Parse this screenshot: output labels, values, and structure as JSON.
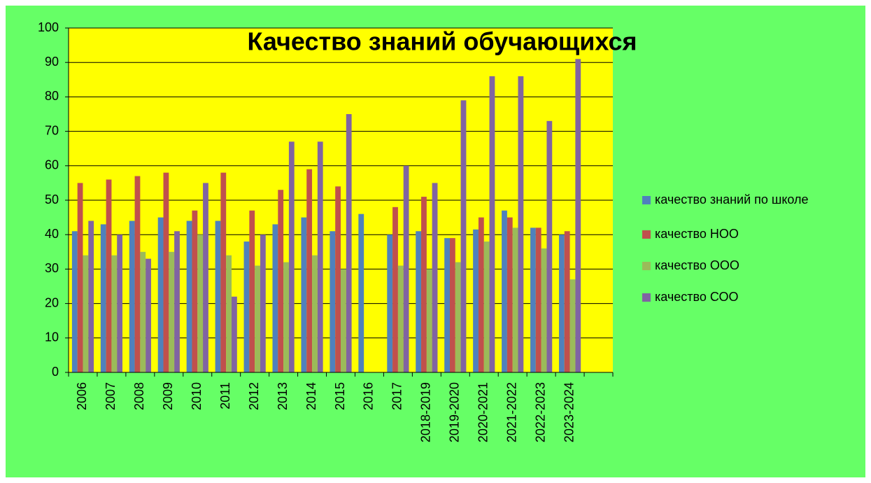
{
  "chart_data": {
    "type": "bar",
    "title": "Качество знаний обучающихся",
    "categories": [
      "2006",
      "2007",
      "2008",
      "2009",
      "2010",
      "2011",
      "2012",
      "2013",
      "2014",
      "2015",
      "2016",
      "2017",
      "2018-2019",
      "2019-2020",
      "2020-2021",
      "2021-2022",
      "2022-2023",
      "2023-2024",
      null
    ],
    "series": [
      {
        "name": "качество знаний  по школе",
        "color": "#4f81bd",
        "values": [
          41,
          43,
          44,
          45,
          44,
          44,
          38,
          43,
          45,
          41,
          46,
          40,
          41,
          39,
          41.5,
          47,
          42,
          40,
          null
        ]
      },
      {
        "name": "качество НОО",
        "color": "#c0504d",
        "values": [
          55,
          56,
          57,
          58,
          47,
          58,
          47,
          53,
          59,
          54,
          null,
          48,
          51,
          39,
          45,
          45,
          42,
          41,
          null
        ]
      },
      {
        "name": "качество ООО",
        "color": "#9bbb59",
        "values": [
          34,
          34,
          35,
          35,
          40,
          34,
          31,
          32,
          34,
          30,
          null,
          31,
          30,
          32,
          38,
          42,
          36,
          27,
          null
        ]
      },
      {
        "name": "качество СОО",
        "color": "#8064a2",
        "values": [
          44,
          40,
          33,
          41,
          55,
          22,
          40,
          67,
          67,
          75,
          null,
          60,
          55,
          79,
          86,
          86,
          73,
          91,
          null
        ]
      }
    ],
    "ylim": [
      0,
      100
    ],
    "yticks": [
      0,
      10,
      20,
      30,
      40,
      50,
      60,
      70,
      80,
      90,
      100
    ],
    "grid": true,
    "legend": "right"
  }
}
